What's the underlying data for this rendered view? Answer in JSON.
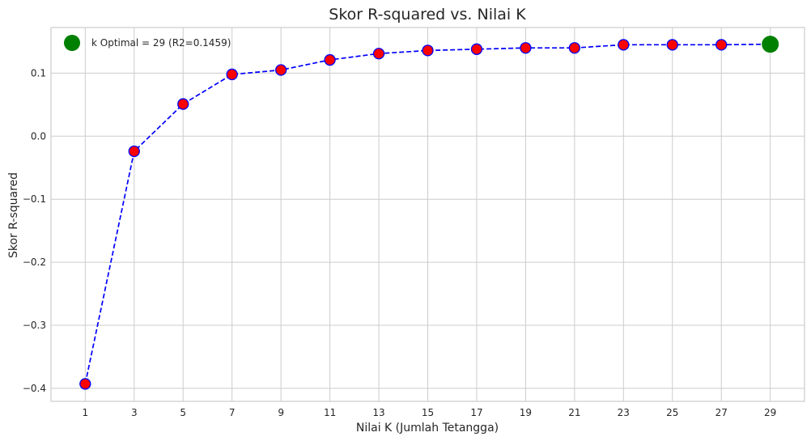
{
  "chart_data": {
    "type": "line",
    "title": "Skor R-squared vs. Nilai K",
    "xlabel": "Nilai K (Jumlah Tetangga)",
    "ylabel": "Skor R-squared",
    "x": [
      1,
      3,
      5,
      7,
      9,
      11,
      13,
      15,
      17,
      19,
      21,
      23,
      25,
      27,
      29
    ],
    "xticks": [
      "1",
      "3",
      "5",
      "7",
      "9",
      "11",
      "13",
      "15",
      "17",
      "19",
      "21",
      "23",
      "25",
      "27",
      "29"
    ],
    "yticks": [
      0.1,
      0.0,
      -0.1,
      -0.2,
      -0.3,
      -0.4
    ],
    "ytick_labels": [
      "0.1",
      "0.0",
      "−0.1",
      "−0.2",
      "−0.3",
      "−0.4"
    ],
    "xlim": [
      -0.4,
      30.4
    ],
    "ylim": [
      -0.4207,
      0.1724
    ],
    "grid": true,
    "legend_position": "top-left",
    "series": [
      {
        "values": [
          -0.393,
          -0.024,
          0.051,
          0.098,
          0.105,
          0.121,
          0.131,
          0.136,
          0.138,
          0.14,
          0.14,
          0.145,
          0.145,
          0.145,
          0.1459
        ],
        "line_color": "#0000ff",
        "line_style": "dashed",
        "marker_face": "#ff0000",
        "marker_edge": "#0000ff"
      }
    ],
    "highlight": {
      "label": "k Optimal = 29 (R2=0.1459)",
      "x": 29,
      "y": 0.1459,
      "color": "#008000"
    }
  }
}
